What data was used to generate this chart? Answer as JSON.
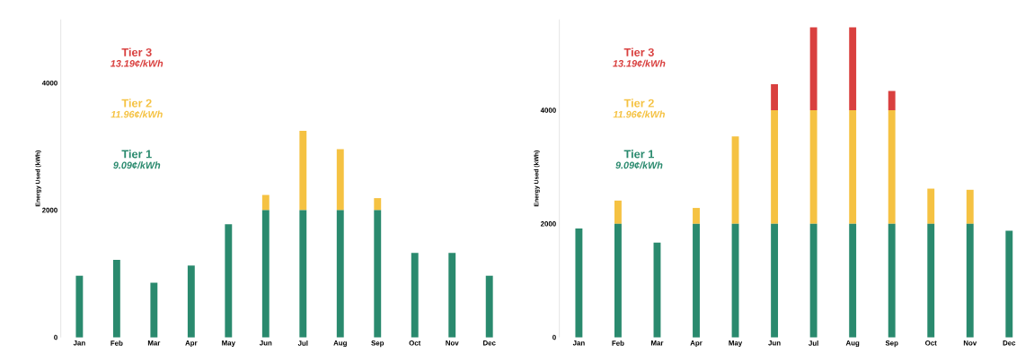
{
  "chart_data": [
    {
      "type": "bar",
      "stacked": true,
      "ylabel": "Energy Used (kWh)",
      "categories": [
        "Jan",
        "Feb",
        "Mar",
        "Apr",
        "May",
        "Jun",
        "Jul",
        "Aug",
        "Sep",
        "Oct",
        "Nov",
        "Dec"
      ],
      "ylim": [
        0,
        5000
      ],
      "yticks": [
        0,
        2000,
        4000
      ],
      "grid": false,
      "series": [
        {
          "name": "Tier 1",
          "color": "#2a8a6e",
          "values": [
            970,
            1220,
            860,
            1130,
            1780,
            2000,
            2000,
            2000,
            2000,
            1330,
            1330,
            970
          ]
        },
        {
          "name": "Tier 2",
          "color": "#f5c242",
          "values": [
            0,
            0,
            0,
            0,
            0,
            240,
            1250,
            960,
            190,
            0,
            0,
            0
          ]
        },
        {
          "name": "Tier 3",
          "color": "#d9403f",
          "values": [
            0,
            0,
            0,
            0,
            0,
            0,
            0,
            0,
            0,
            0,
            0,
            0
          ]
        }
      ],
      "annotations": [
        "9.09¢/kWh",
        "11.96¢/kWh",
        "13.19¢/kWh"
      ]
    },
    {
      "type": "bar",
      "stacked": true,
      "ylabel": "Energy Used (kWh)",
      "categories": [
        "Jan",
        "Feb",
        "Mar",
        "Apr",
        "May",
        "Jun",
        "Jul",
        "Aug",
        "Sep",
        "Oct",
        "Nov",
        "Dec"
      ],
      "ylim": [
        0,
        5600
      ],
      "yticks": [
        0,
        2000,
        4000
      ],
      "grid": false,
      "series": [
        {
          "name": "Tier 1",
          "color": "#2a8a6e",
          "values": [
            1920,
            2000,
            1670,
            2000,
            2000,
            2000,
            2000,
            2000,
            2000,
            2000,
            2000,
            1880
          ]
        },
        {
          "name": "Tier 2",
          "color": "#f5c242",
          "values": [
            0,
            410,
            0,
            280,
            1540,
            2000,
            2000,
            2000,
            2000,
            620,
            600,
            0
          ]
        },
        {
          "name": "Tier 3",
          "color": "#d9403f",
          "values": [
            0,
            0,
            0,
            0,
            0,
            460,
            1460,
            1460,
            340,
            0,
            0,
            0
          ]
        }
      ],
      "annotations": [
        "9.09¢/kWh",
        "11.96¢/kWh",
        "13.19¢/kWh"
      ]
    }
  ]
}
